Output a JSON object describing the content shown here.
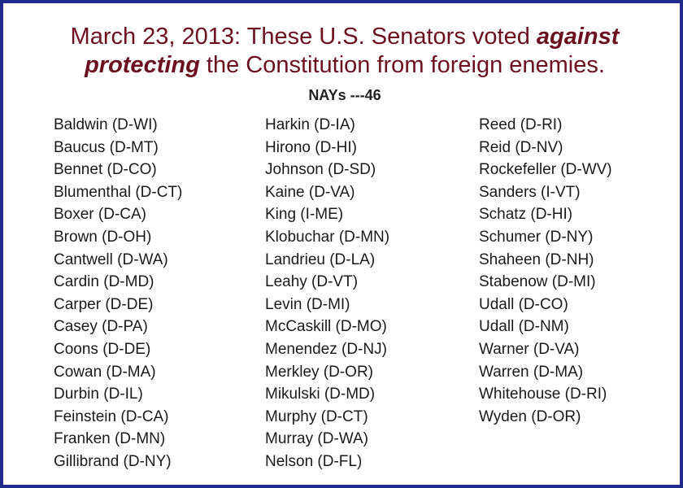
{
  "headline": {
    "line1": "March 23, 2013: These U.S. Senators voted ",
    "emphasis1": "against",
    "emphasis2": "protecting",
    "line2_rest": " the Constitution from foreign enemies."
  },
  "nays_heading": "NAYs ---46",
  "columns": [
    [
      "Baldwin (D-WI)",
      "Baucus (D-MT)",
      "Bennet (D-CO)",
      "Blumenthal (D-CT)",
      "Boxer (D-CA)",
      "Brown (D-OH)",
      "Cantwell (D-WA)",
      "Cardin (D-MD)",
      "Carper (D-DE)",
      "Casey (D-PA)",
      "Coons (D-DE)",
      "Cowan (D-MA)",
      "Durbin (D-IL)",
      "Feinstein (D-CA)",
      "Franken (D-MN)",
      "Gillibrand (D-NY)"
    ],
    [
      "Harkin (D-IA)",
      "Hirono (D-HI)",
      "Johnson (D-SD)",
      "Kaine (D-VA)",
      "King (I-ME)",
      "Klobuchar (D-MN)",
      "Landrieu (D-LA)",
      "Leahy (D-VT)",
      "Levin (D-MI)",
      "McCaskill (D-MO)",
      "Menendez (D-NJ)",
      "Merkley (D-OR)",
      "Mikulski (D-MD)",
      "Murphy (D-CT)",
      "Murray (D-WA)",
      "Nelson (D-FL)"
    ],
    [
      "Reed (D-RI)",
      "Reid (D-NV)",
      "Rockefeller (D-WV)",
      "Sanders (I-VT)",
      "Schatz (D-HI)",
      "Schumer (D-NY)",
      "Shaheen (D-NH)",
      "Stabenow (D-MI)",
      "Udall (D-CO)",
      "Udall (D-NM)",
      "Warner (D-VA)",
      "Warren (D-MA)",
      "Whitehouse (D-RI)",
      "Wyden (D-OR)"
    ]
  ],
  "colors": {
    "border": "#1f2a8a",
    "headline": "#6b1020",
    "text": "#1a1a1a"
  }
}
